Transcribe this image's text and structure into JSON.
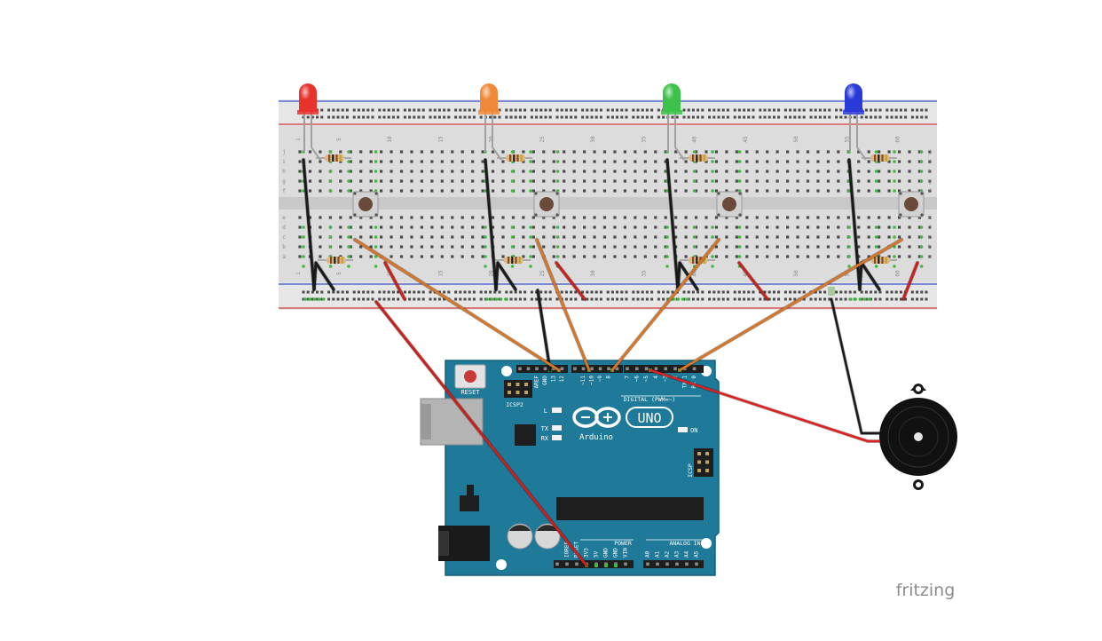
{
  "board": {
    "reset_label": "RESET",
    "icsp2_label": "ICSP2",
    "icsp_label": "ICSP",
    "l_label": "L",
    "tx_label": "TX",
    "rx_label": "RX",
    "on_label": "ON",
    "brand": "Arduino",
    "model": "UNO",
    "digital_label": "DIGITAL (PWM=~)",
    "power_label": "POWER",
    "analog_label": "ANALOG IN",
    "top_pins": [
      "AREF",
      "GND",
      "13",
      "12",
      "~11",
      "~10",
      "~9",
      "8",
      "7",
      "~6",
      "~5",
      "4",
      "~3",
      "2",
      "TX 1",
      "RX 0"
    ],
    "power_pins": [
      "IOREF",
      "RESET",
      "3V3",
      "5V",
      "GND",
      "GND",
      "VIN"
    ],
    "analog_pins": [
      "A0",
      "A1",
      "A2",
      "A3",
      "A4",
      "A5"
    ]
  },
  "breadboard": {
    "column_numbers": [
      "1",
      "5",
      "10",
      "15",
      "20",
      "25",
      "30",
      "35",
      "40",
      "45",
      "50",
      "55",
      "60"
    ],
    "row_letters_top": [
      "j",
      "i",
      "h",
      "g",
      "f"
    ],
    "row_letters_bottom": [
      "e",
      "d",
      "c",
      "b",
      "a"
    ]
  },
  "components": {
    "leds": [
      {
        "color": "#e8322c"
      },
      {
        "color": "#f08a3a"
      },
      {
        "color": "#3cc24a"
      },
      {
        "color": "#2a3ad8"
      }
    ],
    "buttons": 4,
    "resistors": 8,
    "buzzer": 1
  },
  "wire_colors": {
    "black": "#1a1a1a",
    "red": "#c8201c",
    "orange": "#d4762a",
    "buzzer_red": "#e02020"
  },
  "watermark": "fritzing"
}
